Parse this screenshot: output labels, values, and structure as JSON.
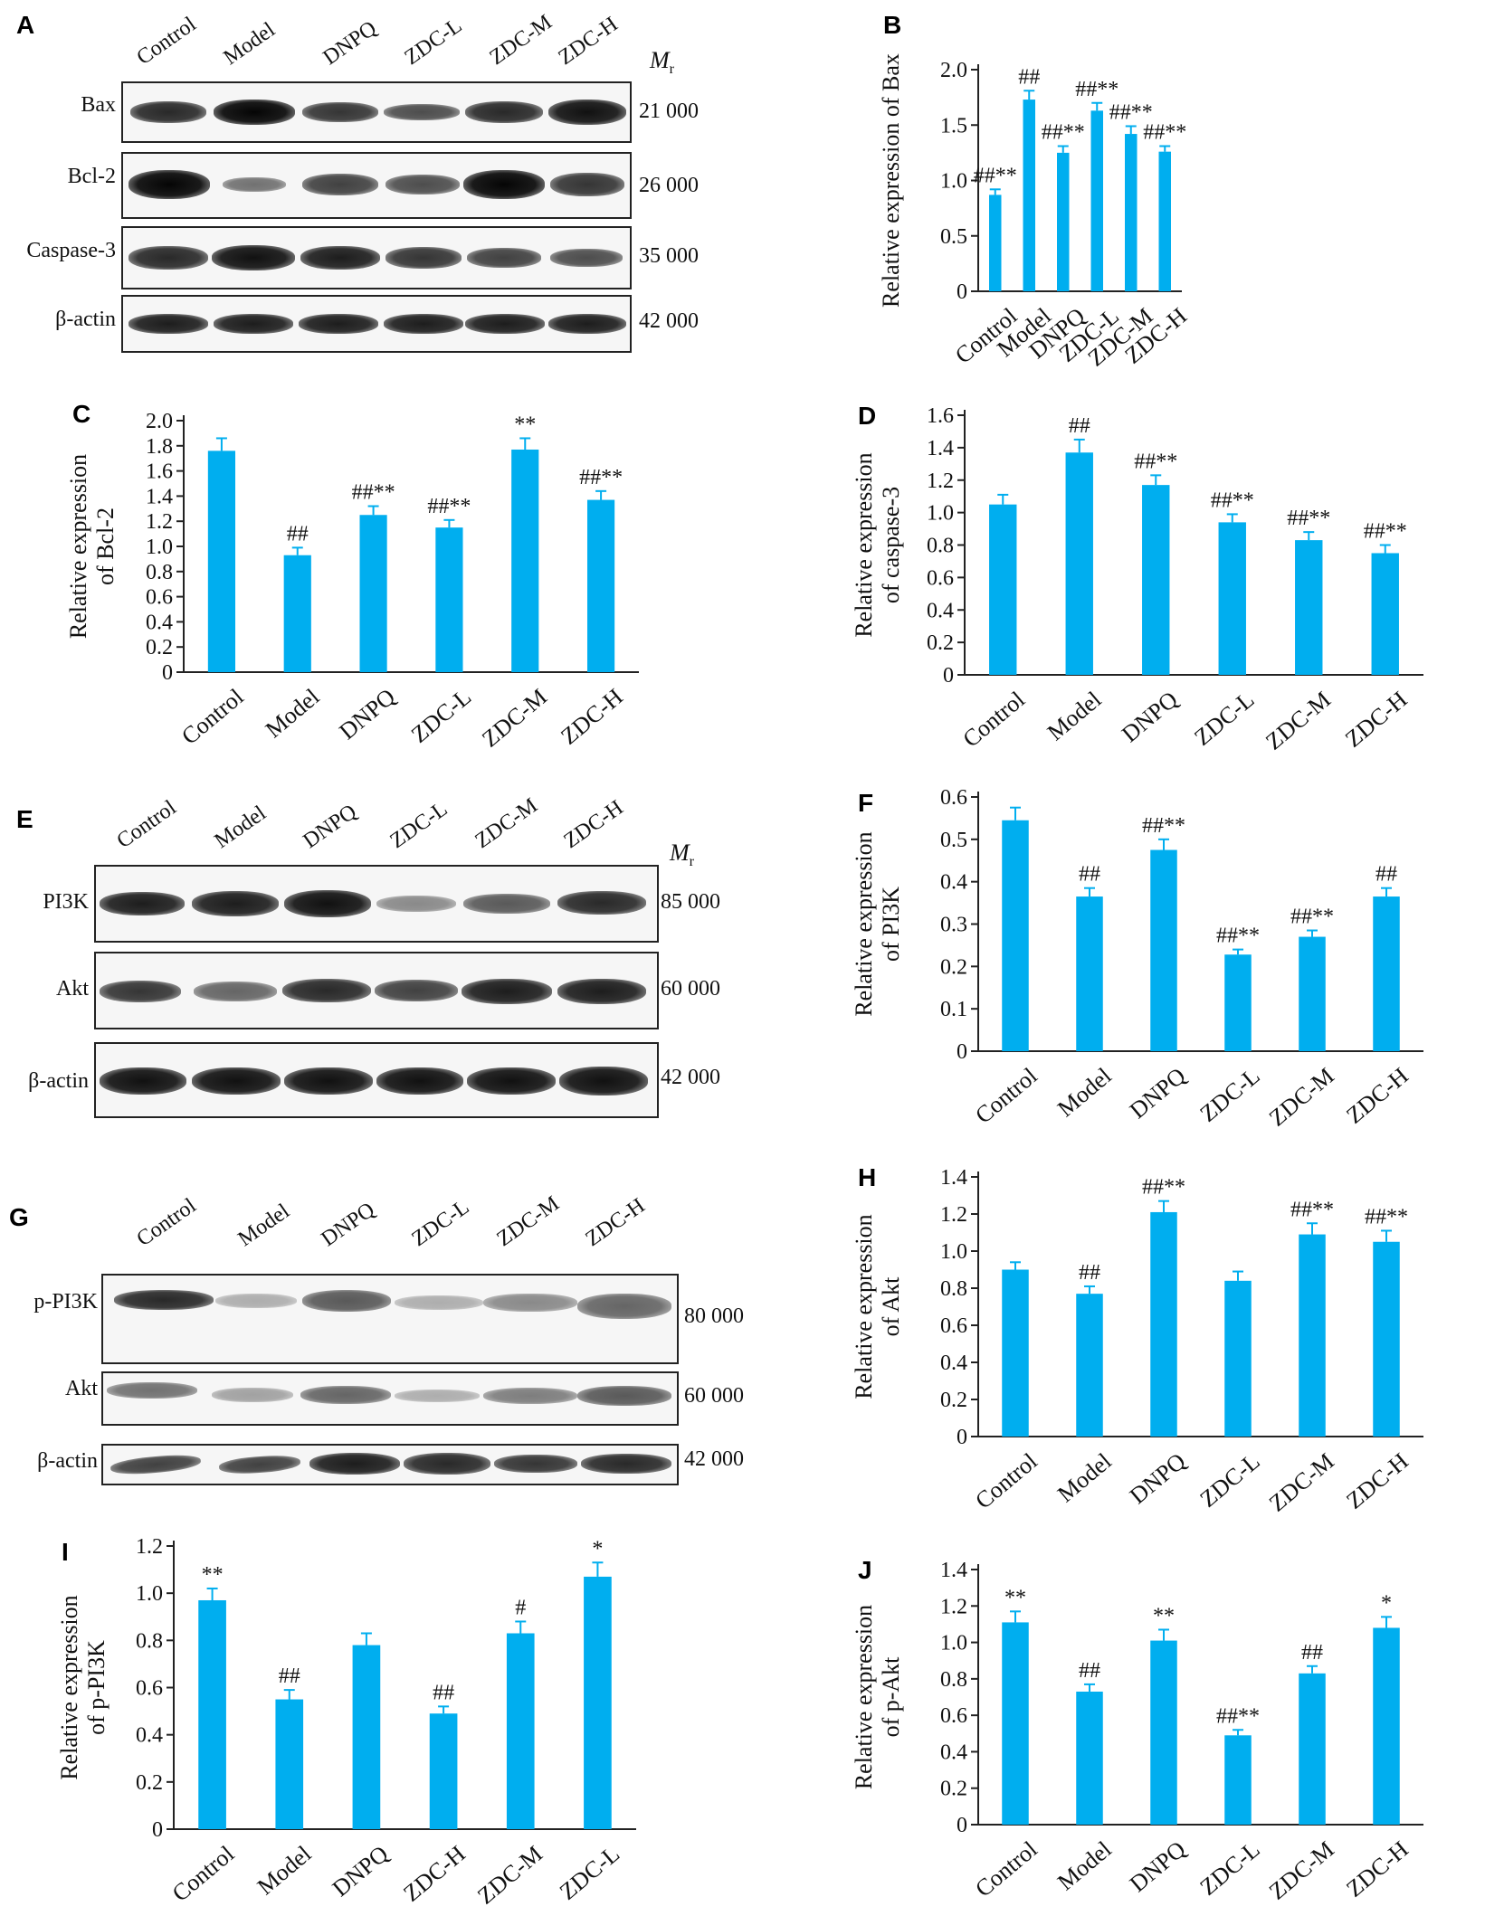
{
  "panel_letters": {
    "A": "A",
    "B": "B",
    "C": "C",
    "D": "D",
    "E": "E",
    "F": "F",
    "G": "G",
    "H": "H",
    "I": "I",
    "J": "J"
  },
  "colors": {
    "bar": "#00aeef",
    "axis": "#222222"
  },
  "blots": [
    {
      "id": "A",
      "lanes": [
        "Control",
        "Model",
        "DNPQ",
        "ZDC-L",
        "ZDC-M",
        "ZDC-H"
      ],
      "mr_label": "M",
      "mr_sub": "r",
      "rows": [
        {
          "name": "Bax",
          "weight": "21 000",
          "intensity": [
            0.85,
            1.0,
            0.8,
            0.7,
            0.85,
            0.95
          ]
        },
        {
          "name": "Bcl-2",
          "weight": "26 000",
          "intensity": [
            1.0,
            0.55,
            0.75,
            0.7,
            1.0,
            0.8
          ]
        },
        {
          "name": "Caspase-3",
          "weight": "35 000",
          "intensity": [
            0.85,
            0.95,
            0.9,
            0.8,
            0.75,
            0.7
          ]
        },
        {
          "name": "β-actin",
          "weight": "42 000",
          "intensity": [
            0.9,
            0.9,
            0.9,
            0.9,
            0.9,
            0.9
          ]
        }
      ]
    },
    {
      "id": "E",
      "lanes": [
        "Control",
        "Model",
        "DNPQ",
        "ZDC-L",
        "ZDC-M",
        "ZDC-H"
      ],
      "mr_label": "M",
      "mr_sub": "r",
      "rows": [
        {
          "name": "PI3K",
          "weight": "85 000",
          "intensity": [
            0.9,
            0.9,
            0.95,
            0.45,
            0.65,
            0.85
          ]
        },
        {
          "name": "Akt",
          "weight": "60 000",
          "intensity": [
            0.8,
            0.6,
            0.85,
            0.75,
            0.9,
            0.9
          ]
        },
        {
          "name": "β-actin",
          "weight": "42 000",
          "intensity": [
            0.95,
            0.95,
            0.95,
            0.95,
            0.95,
            0.95
          ]
        }
      ]
    },
    {
      "id": "G",
      "lanes": [
        "Control",
        "Model",
        "DNPQ",
        "ZDC-L",
        "ZDC-M",
        "ZDC-H"
      ],
      "rows": [
        {
          "name": "p-PI3K",
          "weight": "80 000",
          "intensity": [
            0.85,
            0.3,
            0.65,
            0.3,
            0.45,
            0.6
          ]
        },
        {
          "name": "Akt",
          "weight": "60 000",
          "intensity": [
            0.55,
            0.35,
            0.6,
            0.3,
            0.5,
            0.65
          ]
        },
        {
          "name": "β-actin",
          "weight": "42 000",
          "intensity": [
            0.75,
            0.75,
            0.9,
            0.85,
            0.8,
            0.85
          ]
        }
      ]
    }
  ],
  "chart_data": [
    {
      "id": "B",
      "type": "bar",
      "categories": [
        "Control",
        "Model",
        "DNPQ",
        "ZDC-L",
        "ZDC-M",
        "ZDC-H"
      ],
      "values": [
        0.87,
        1.73,
        1.25,
        1.63,
        1.42,
        1.26
      ],
      "errors": [
        0.05,
        0.08,
        0.06,
        0.07,
        0.07,
        0.05
      ],
      "annotations": [
        "##**",
        "##",
        "##**",
        "##**",
        "##**",
        "##**"
      ],
      "ylabel": "Relative expression of Bax",
      "ylabel_lines": [
        "Relative expression of Bax"
      ],
      "ylim": [
        0,
        2.0
      ],
      "yticks": [
        "0",
        "0.5",
        "1.0",
        "1.5",
        "2.0"
      ]
    },
    {
      "id": "C",
      "type": "bar",
      "categories": [
        "Control",
        "Model",
        "DNPQ",
        "ZDC-L",
        "ZDC-M",
        "ZDC-H"
      ],
      "values": [
        1.76,
        0.93,
        1.25,
        1.15,
        1.77,
        1.37
      ],
      "errors": [
        0.1,
        0.06,
        0.07,
        0.06,
        0.09,
        0.07
      ],
      "annotations": [
        "",
        "##",
        "##**",
        "##**",
        "**",
        "##**"
      ],
      "ylabel_lines": [
        "Relative expression",
        "of Bcl-2"
      ],
      "ylim": [
        0,
        2.0
      ],
      "yticks": [
        "0",
        "0.2",
        "0.4",
        "0.6",
        "0.8",
        "1.0",
        "1.2",
        "1.4",
        "1.6",
        "1.8",
        "2.0"
      ]
    },
    {
      "id": "D",
      "type": "bar",
      "categories": [
        "Control",
        "Model",
        "DNPQ",
        "ZDC-L",
        "ZDC-M",
        "ZDC-H"
      ],
      "values": [
        1.05,
        1.37,
        1.17,
        0.94,
        0.83,
        0.75
      ],
      "errors": [
        0.06,
        0.08,
        0.06,
        0.05,
        0.05,
        0.05
      ],
      "annotations": [
        "",
        "##",
        "##**",
        "##**",
        "##**",
        "##**"
      ],
      "ylabel_lines": [
        "Relative expression",
        "of caspase-3"
      ],
      "ylim": [
        0,
        1.6
      ],
      "yticks": [
        "0",
        "0.2",
        "0.4",
        "0.6",
        "0.8",
        "1.0",
        "1.2",
        "1.4",
        "1.6"
      ]
    },
    {
      "id": "F",
      "type": "bar",
      "categories": [
        "Control",
        "Model",
        "DNPQ",
        "ZDC-L",
        "ZDC-M",
        "ZDC-H"
      ],
      "values": [
        0.545,
        0.365,
        0.475,
        0.228,
        0.27,
        0.365
      ],
      "errors": [
        0.03,
        0.02,
        0.025,
        0.012,
        0.015,
        0.02
      ],
      "annotations": [
        "",
        "##",
        "##**",
        "##**",
        "##**",
        "##"
      ],
      "ylabel_lines": [
        "Relative expression",
        "of PI3K"
      ],
      "ylim": [
        0,
        0.6
      ],
      "yticks": [
        "0",
        "0.1",
        "0.2",
        "0.3",
        "0.4",
        "0.5",
        "0.6"
      ]
    },
    {
      "id": "H",
      "type": "bar",
      "categories": [
        "Control",
        "Model",
        "DNPQ",
        "ZDC-L",
        "ZDC-M",
        "ZDC-H"
      ],
      "values": [
        0.9,
        0.77,
        1.21,
        0.84,
        1.09,
        1.05
      ],
      "errors": [
        0.04,
        0.04,
        0.06,
        0.05,
        0.06,
        0.06
      ],
      "annotations": [
        "",
        "##",
        "##**",
        "",
        "##**",
        "##**"
      ],
      "ylabel_lines": [
        "Relative expression",
        "of Akt"
      ],
      "ylim": [
        0,
        1.4
      ],
      "yticks": [
        "0",
        "0.2",
        "0.4",
        "0.6",
        "0.8",
        "1.0",
        "1.2",
        "1.4"
      ]
    },
    {
      "id": "I",
      "type": "bar",
      "categories": [
        "Control",
        "Model",
        "DNPQ",
        "ZDC-H",
        "ZDC-M",
        "ZDC-L"
      ],
      "values": [
        0.97,
        0.55,
        0.78,
        0.49,
        0.83,
        1.07
      ],
      "errors": [
        0.05,
        0.04,
        0.05,
        0.03,
        0.05,
        0.06
      ],
      "annotations": [
        "**",
        "##",
        "",
        "##",
        "#",
        "*"
      ],
      "ylabel_lines": [
        "Relative expression",
        "of p-PI3K"
      ],
      "ylim": [
        0,
        1.2
      ],
      "yticks": [
        "0",
        "0.2",
        "0.4",
        "0.6",
        "0.8",
        "1.0",
        "1.2"
      ]
    },
    {
      "id": "J",
      "type": "bar",
      "categories": [
        "Control",
        "Model",
        "DNPQ",
        "ZDC-L",
        "ZDC-M",
        "ZDC-H"
      ],
      "values": [
        1.11,
        0.73,
        1.01,
        0.49,
        0.83,
        1.08
      ],
      "errors": [
        0.06,
        0.04,
        0.06,
        0.03,
        0.04,
        0.06
      ],
      "annotations": [
        "**",
        "##",
        "**",
        "##**",
        "##",
        "*"
      ],
      "ylabel_lines": [
        "Relative expression",
        "of p-Akt"
      ],
      "ylim": [
        0,
        1.4
      ],
      "yticks": [
        "0",
        "0.2",
        "0.4",
        "0.6",
        "0.8",
        "1.0",
        "1.2",
        "1.4"
      ]
    }
  ]
}
